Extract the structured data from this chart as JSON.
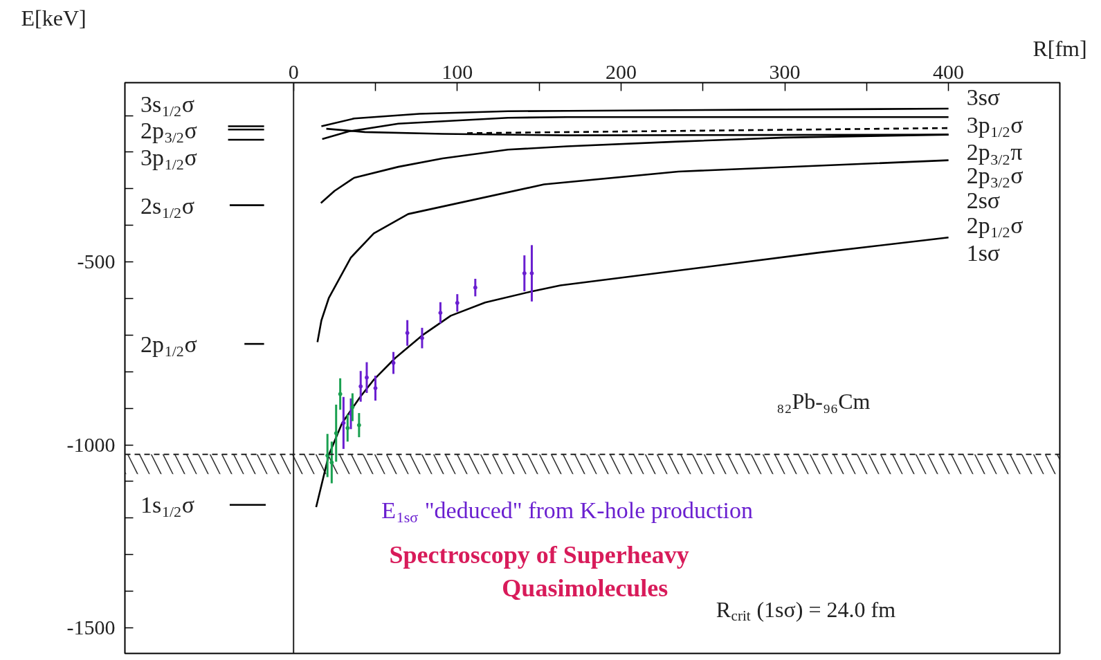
{
  "chart_data": {
    "type": "line",
    "title": "Spectroscopy of Superheavy\nQuasimolecules",
    "xlabel": "R[fm]",
    "ylabel": "E[keV]",
    "xlim": [
      -103,
      468
    ],
    "ylim": [
      -1570,
      -10
    ],
    "xticks": [
      0,
      {
        "value": 50,
        "label": null
      },
      100,
      {
        "value": 150,
        "label": null
      },
      200,
      {
        "value": 250,
        "label": null
      },
      300,
      {
        "value": 350,
        "label": null
      },
      400
    ],
    "yticks": [
      -1500,
      {
        "value": -1400,
        "label": null
      },
      {
        "value": -1300,
        "label": null
      },
      {
        "value": -1200,
        "label": null
      },
      {
        "value": -1100,
        "label": null
      },
      -1000,
      {
        "value": -900,
        "label": null
      },
      {
        "value": -800,
        "label": null
      },
      {
        "value": -700,
        "label": null
      },
      {
        "value": -600,
        "label": null
      },
      -500,
      {
        "value": -400,
        "label": null
      },
      {
        "value": -300,
        "label": null
      },
      {
        "value": -200,
        "label": null
      },
      {
        "value": -100,
        "label": null
      }
    ],
    "series": [
      {
        "color": "#000000",
        "x": [
          17,
          37,
          77,
          131,
          167,
          280,
          400
        ],
        "values": [
          -129,
          -108,
          -95,
          -88,
          -87,
          -84,
          -81
        ]
      },
      {
        "color": "#000000",
        "x": [
          17.5,
          34,
          64,
          131,
          167,
          280,
          400
        ],
        "values": [
          -164,
          -143,
          -122,
          -106,
          -104,
          -104,
          -104
        ]
      },
      {
        "color": "#000000",
        "x": [
          20,
          43.5,
          91,
          167,
          280,
          400
        ],
        "values": [
          -136,
          -145,
          -150,
          -154,
          -153,
          -152
        ]
      },
      {
        "color": "#000000",
        "line_style": "dashed",
        "x": [
          106,
          400
        ],
        "values": [
          -148,
          -134
        ]
      },
      {
        "color": "#000000",
        "x": [
          16.7,
          25,
          37,
          64,
          91,
          131,
          167,
          235,
          300,
          400
        ],
        "values": [
          -339,
          -306,
          -270,
          -240,
          -217,
          -193,
          -184,
          -171,
          -160,
          -152
        ]
      },
      {
        "color": "#000000",
        "x": [
          14.6,
          17,
          21.5,
          35,
          49,
          70,
          153,
          235,
          400
        ],
        "values": [
          -719,
          -660,
          -599,
          -488,
          -422,
          -369,
          -288,
          -253,
          -222
        ]
      },
      {
        "color": "#000000",
        "x": [
          13.8,
          21.5,
          29.7,
          40.7,
          48.8,
          62,
          78.5,
          96,
          117,
          145,
          163,
          250,
          320,
          400
        ],
        "values": [
          -1170,
          -1028,
          -940,
          -869,
          -823,
          -763,
          -701,
          -647,
          -611,
          -581,
          -564,
          -515,
          -475,
          -433
        ]
      },
      {
        "color": "#000000",
        "x": [
          -40,
          -18
        ],
        "values": [
          -129,
          -129
        ]
      },
      {
        "color": "#000000",
        "x": [
          -40,
          -18
        ],
        "values": [
          -138,
          -138
        ]
      },
      {
        "color": "#000000",
        "x": [
          -40,
          -18
        ],
        "values": [
          -166,
          -166
        ]
      },
      {
        "color": "#000000",
        "x": [
          -39,
          -18
        ],
        "values": [
          -345,
          -345
        ]
      },
      {
        "color": "#000000",
        "x": [
          -30,
          -18
        ],
        "values": [
          -724,
          -724
        ]
      },
      {
        "color": "#000000",
        "x": [
          -39,
          -17
        ],
        "values": [
          -1164,
          -1164
        ]
      },
      {
        "type": "scatter",
        "marker": "circle",
        "name": "E$_{1sσ}$ \"deduced\" from K-hole production",
        "color": "#6a1fd0",
        "x": [
          30.5,
          35,
          41,
          44.7,
          50,
          61,
          69.5,
          78.5,
          89.7,
          100,
          111,
          141,
          145.5
        ],
        "values": [
          -940,
          -915,
          -840,
          -816,
          -845,
          -776,
          -694,
          -708,
          -639,
          -612,
          -570,
          -531,
          -531
        ],
        "errors": [
          71,
          42,
          42,
          42,
          34,
          30,
          35,
          28,
          29,
          24,
          24,
          49,
          77
        ]
      },
      {
        "type": "scatter",
        "marker": "circle",
        "color": "#1aa050",
        "x": [
          20.7,
          23.3,
          26,
          28.5,
          33,
          36,
          40
        ],
        "values": [
          -1029,
          -1048,
          -968,
          -861,
          -954,
          -897,
          -946
        ],
        "errors": [
          59,
          57,
          78,
          43,
          37,
          38,
          33
        ]
      }
    ],
    "ref_lines": [
      {
        "axis": "x",
        "value": 0
      },
      {
        "axis": "y",
        "value": -1026,
        "line_style": "dashed"
      }
    ],
    "bands": [
      {
        "axis": "y",
        "from": -1080,
        "to": -1026
      }
    ],
    "annotations": [
      "3sσ",
      "3p$_{1/2}$σ",
      "2p$_{3/2}$π",
      "2p$_{3/2}$σ",
      "2sσ",
      "2p$_{1/2}$σ",
      "1sσ",
      "3s$_{1/2}$σ",
      "2p$_{3/2}$σ",
      "3p$_{1/2}$σ",
      "2s$_{1/2}$σ",
      "2p$_{1/2}$σ",
      "1s$_{1/2}$σ",
      "₈₂Pb-₉₆Cm",
      "R$_{crit}$ (1sσ) = 24.0 fm"
    ]
  }
}
